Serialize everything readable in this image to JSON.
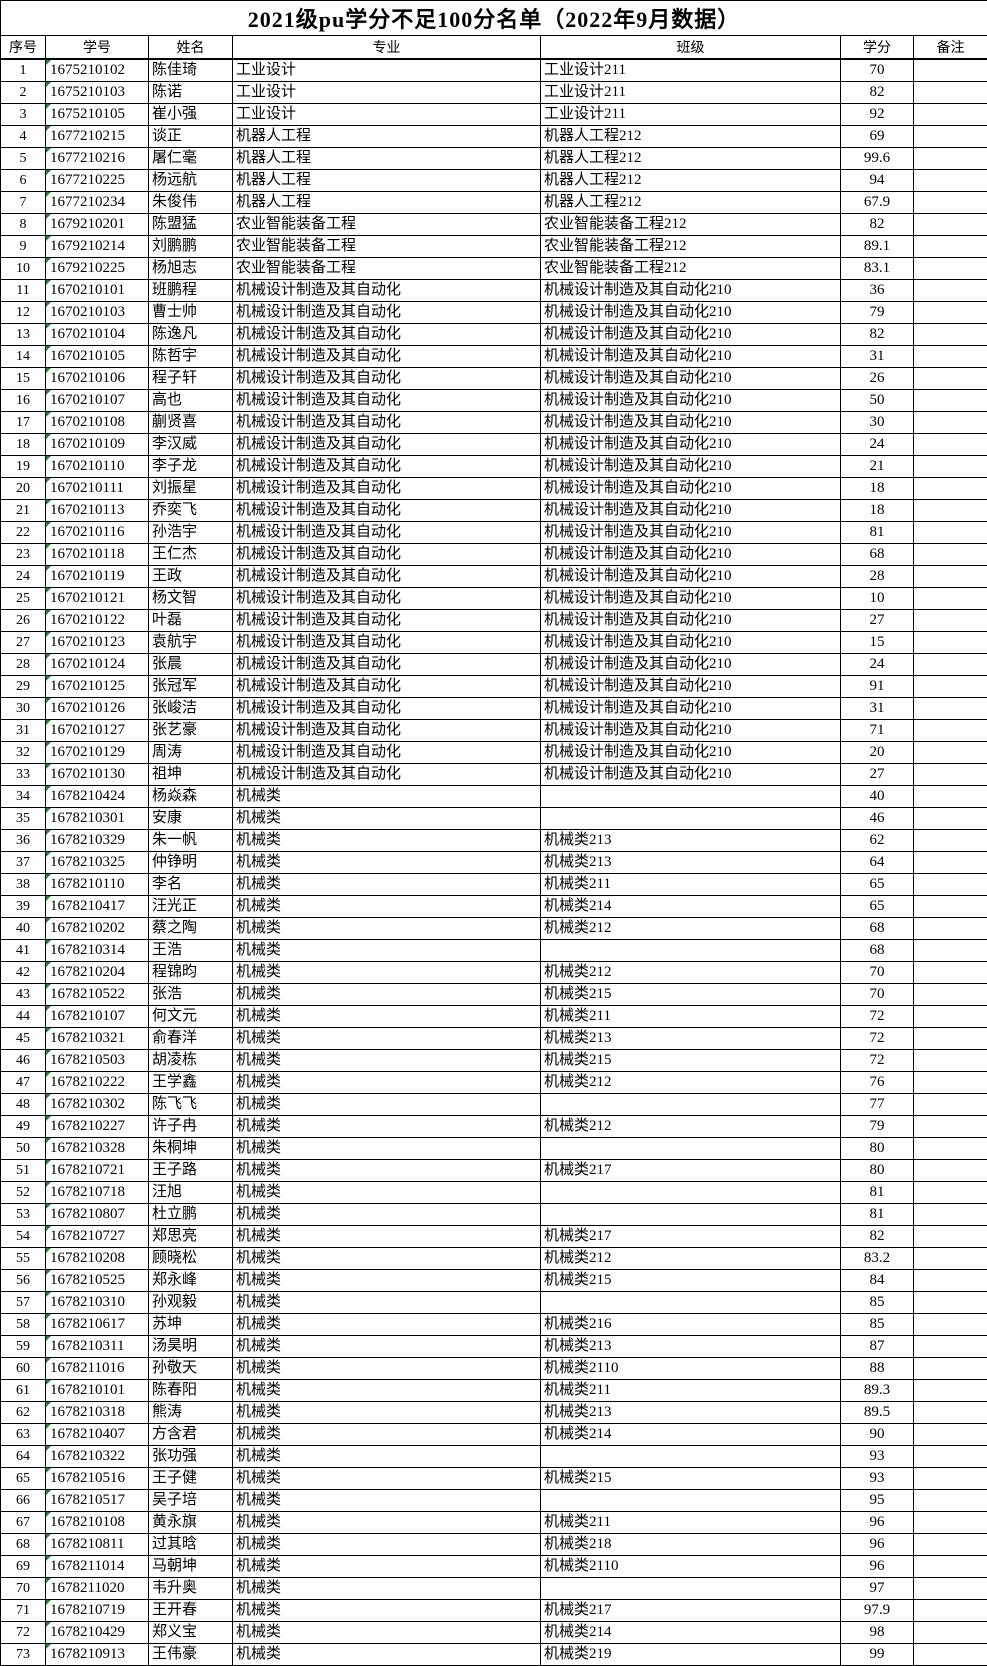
{
  "title": "2021级pu学分不足100分名单（2022年9月数据）",
  "colors": {
    "number_as_text_marker_green": "#2e7d32",
    "grid_border": "#000000"
  },
  "table": {
    "columns": [
      "序号",
      "学号",
      "姓名",
      "专业",
      "班级",
      "学分",
      "备注"
    ],
    "cell_names": [
      "cell-index",
      "cell-student-id",
      "cell-name",
      "cell-major",
      "cell-class",
      "cell-credits",
      "cell-remark"
    ],
    "rows": [
      [
        "1",
        "1675210102",
        "陈佳琦",
        "工业设计",
        "工业设计211",
        "70",
        ""
      ],
      [
        "2",
        "1675210103",
        "陈诺",
        "工业设计",
        "工业设计211",
        "82",
        ""
      ],
      [
        "3",
        "1675210105",
        "崔小强",
        "工业设计",
        "工业设计211",
        "92",
        ""
      ],
      [
        "4",
        "1677210215",
        "谈正",
        "机器人工程",
        "机器人工程212",
        "69",
        ""
      ],
      [
        "5",
        "1677210216",
        "屠仁毫",
        "机器人工程",
        "机器人工程212",
        "99.6",
        ""
      ],
      [
        "6",
        "1677210225",
        "杨远航",
        "机器人工程",
        "机器人工程212",
        "94",
        ""
      ],
      [
        "7",
        "1677210234",
        "朱俊伟",
        "机器人工程",
        "机器人工程212",
        "67.9",
        ""
      ],
      [
        "8",
        "1679210201",
        "陈盟猛",
        "农业智能装备工程",
        "农业智能装备工程212",
        "82",
        ""
      ],
      [
        "9",
        "1679210214",
        "刘鹏鹏",
        "农业智能装备工程",
        "农业智能装备工程212",
        "89.1",
        ""
      ],
      [
        "10",
        "1679210225",
        "杨旭志",
        "农业智能装备工程",
        "农业智能装备工程212",
        "83.1",
        ""
      ],
      [
        "11",
        "1670210101",
        "班鹏程",
        "机械设计制造及其自动化",
        "机械设计制造及其自动化210",
        "36",
        ""
      ],
      [
        "12",
        "1670210103",
        "曹士帅",
        "机械设计制造及其自动化",
        "机械设计制造及其自动化210",
        "79",
        ""
      ],
      [
        "13",
        "1670210104",
        "陈逸凡",
        "机械设计制造及其自动化",
        "机械设计制造及其自动化210",
        "82",
        ""
      ],
      [
        "14",
        "1670210105",
        "陈哲宇",
        "机械设计制造及其自动化",
        "机械设计制造及其自动化210",
        "31",
        ""
      ],
      [
        "15",
        "1670210106",
        "程子轩",
        "机械设计制造及其自动化",
        "机械设计制造及其自动化210",
        "26",
        ""
      ],
      [
        "16",
        "1670210107",
        "高也",
        "机械设计制造及其自动化",
        "机械设计制造及其自动化210",
        "50",
        ""
      ],
      [
        "17",
        "1670210108",
        "蒯贤喜",
        "机械设计制造及其自动化",
        "机械设计制造及其自动化210",
        "30",
        ""
      ],
      [
        "18",
        "1670210109",
        "李汉威",
        "机械设计制造及其自动化",
        "机械设计制造及其自动化210",
        "24",
        ""
      ],
      [
        "19",
        "1670210110",
        "李子龙",
        "机械设计制造及其自动化",
        "机械设计制造及其自动化210",
        "21",
        ""
      ],
      [
        "20",
        "1670210111",
        "刘振星",
        "机械设计制造及其自动化",
        "机械设计制造及其自动化210",
        "18",
        ""
      ],
      [
        "21",
        "1670210113",
        "乔奕飞",
        "机械设计制造及其自动化",
        "机械设计制造及其自动化210",
        "18",
        ""
      ],
      [
        "22",
        "1670210116",
        "孙浩宇",
        "机械设计制造及其自动化",
        "机械设计制造及其自动化210",
        "81",
        ""
      ],
      [
        "23",
        "1670210118",
        "王仁杰",
        "机械设计制造及其自动化",
        "机械设计制造及其自动化210",
        "68",
        ""
      ],
      [
        "24",
        "1670210119",
        "王政",
        "机械设计制造及其自动化",
        "机械设计制造及其自动化210",
        "28",
        ""
      ],
      [
        "25",
        "1670210121",
        "杨文智",
        "机械设计制造及其自动化",
        "机械设计制造及其自动化210",
        "10",
        ""
      ],
      [
        "26",
        "1670210122",
        "叶磊",
        "机械设计制造及其自动化",
        "机械设计制造及其自动化210",
        "27",
        ""
      ],
      [
        "27",
        "1670210123",
        "袁航宇",
        "机械设计制造及其自动化",
        "机械设计制造及其自动化210",
        "15",
        ""
      ],
      [
        "28",
        "1670210124",
        "张晨",
        "机械设计制造及其自动化",
        "机械设计制造及其自动化210",
        "24",
        ""
      ],
      [
        "29",
        "1670210125",
        "张冠军",
        "机械设计制造及其自动化",
        "机械设计制造及其自动化210",
        "91",
        ""
      ],
      [
        "30",
        "1670210126",
        "张峻洁",
        "机械设计制造及其自动化",
        "机械设计制造及其自动化210",
        "31",
        ""
      ],
      [
        "31",
        "1670210127",
        "张艺豪",
        "机械设计制造及其自动化",
        "机械设计制造及其自动化210",
        "71",
        ""
      ],
      [
        "32",
        "1670210129",
        "周涛",
        "机械设计制造及其自动化",
        "机械设计制造及其自动化210",
        "20",
        ""
      ],
      [
        "33",
        "1670210130",
        "祖坤",
        "机械设计制造及其自动化",
        "机械设计制造及其自动化210",
        "27",
        ""
      ],
      [
        "34",
        "1678210424",
        "杨焱森",
        "机械类",
        "",
        "40",
        ""
      ],
      [
        "35",
        "1678210301",
        "安康",
        "机械类",
        "",
        "46",
        ""
      ],
      [
        "36",
        "1678210329",
        "朱一帆",
        "机械类",
        "机械类213",
        "62",
        ""
      ],
      [
        "37",
        "1678210325",
        "仲铮明",
        "机械类",
        "机械类213",
        "64",
        ""
      ],
      [
        "38",
        "1678210110",
        "李名",
        "机械类",
        "机械类211",
        "65",
        ""
      ],
      [
        "39",
        "1678210417",
        "汪光正",
        "机械类",
        "机械类214",
        "65",
        ""
      ],
      [
        "40",
        "1678210202",
        "蔡之陶",
        "机械类",
        "机械类212",
        "68",
        ""
      ],
      [
        "41",
        "1678210314",
        "王浩",
        "机械类",
        "",
        "68",
        ""
      ],
      [
        "42",
        "1678210204",
        "程锦昀",
        "机械类",
        "机械类212",
        "70",
        ""
      ],
      [
        "43",
        "1678210522",
        "张浩",
        "机械类",
        "机械类215",
        "70",
        ""
      ],
      [
        "44",
        "1678210107",
        "何文元",
        "机械类",
        "机械类211",
        "72",
        ""
      ],
      [
        "45",
        "1678210321",
        "俞春洋",
        "机械类",
        "机械类213",
        "72",
        ""
      ],
      [
        "46",
        "1678210503",
        "胡凌栋",
        "机械类",
        "机械类215",
        "72",
        ""
      ],
      [
        "47",
        "1678210222",
        "王学鑫",
        "机械类",
        "机械类212",
        "76",
        ""
      ],
      [
        "48",
        "1678210302",
        "陈飞飞",
        "机械类",
        "",
        "77",
        ""
      ],
      [
        "49",
        "1678210227",
        "许子冉",
        "机械类",
        "机械类212",
        "79",
        ""
      ],
      [
        "50",
        "1678210328",
        "朱桐坤",
        "机械类",
        "",
        "80",
        ""
      ],
      [
        "51",
        "1678210721",
        "王子路",
        "机械类",
        "机械类217",
        "80",
        ""
      ],
      [
        "52",
        "1678210718",
        "汪旭",
        "机械类",
        "",
        "81",
        ""
      ],
      [
        "53",
        "1678210807",
        "杜立鹏",
        "机械类",
        "",
        "81",
        ""
      ],
      [
        "54",
        "1678210727",
        "郑思亮",
        "机械类",
        "机械类217",
        "82",
        ""
      ],
      [
        "55",
        "1678210208",
        "顾晓松",
        "机械类",
        "机械类212",
        "83.2",
        ""
      ],
      [
        "56",
        "1678210525",
        "郑永峰",
        "机械类",
        "机械类215",
        "84",
        ""
      ],
      [
        "57",
        "1678210310",
        "孙观毅",
        "机械类",
        "",
        "85",
        ""
      ],
      [
        "58",
        "1678210617",
        "苏坤",
        "机械类",
        "机械类216",
        "85",
        ""
      ],
      [
        "59",
        "1678210311",
        "汤昊明",
        "机械类",
        "机械类213",
        "87",
        ""
      ],
      [
        "60",
        "1678211016",
        "孙敬天",
        "机械类",
        "机械类2110",
        "88",
        ""
      ],
      [
        "61",
        "1678210101",
        "陈春阳",
        "机械类",
        "机械类211",
        "89.3",
        ""
      ],
      [
        "62",
        "1678210318",
        "熊涛",
        "机械类",
        "机械类213",
        "89.5",
        ""
      ],
      [
        "63",
        "1678210407",
        "方含君",
        "机械类",
        "机械类214",
        "90",
        ""
      ],
      [
        "64",
        "1678210322",
        "张功强",
        "机械类",
        "",
        "93",
        ""
      ],
      [
        "65",
        "1678210516",
        "王子健",
        "机械类",
        "机械类215",
        "93",
        ""
      ],
      [
        "66",
        "1678210517",
        "吴子培",
        "机械类",
        "",
        "95",
        ""
      ],
      [
        "67",
        "1678210108",
        "黄永旗",
        "机械类",
        "机械类211",
        "96",
        ""
      ],
      [
        "68",
        "1678210811",
        "过其晗",
        "机械类",
        "机械类218",
        "96",
        ""
      ],
      [
        "69",
        "1678211014",
        "马朝坤",
        "机械类",
        "机械类2110",
        "96",
        ""
      ],
      [
        "70",
        "1678211020",
        "韦升奥",
        "机械类",
        "",
        "97",
        ""
      ],
      [
        "71",
        "1678210719",
        "王开春",
        "机械类",
        "机械类217",
        "97.9",
        ""
      ],
      [
        "72",
        "1678210429",
        "郑义宝",
        "机械类",
        "机械类214",
        "98",
        ""
      ],
      [
        "73",
        "1678210913",
        "王伟豪",
        "机械类",
        "机械类219",
        "99",
        ""
      ]
    ]
  }
}
